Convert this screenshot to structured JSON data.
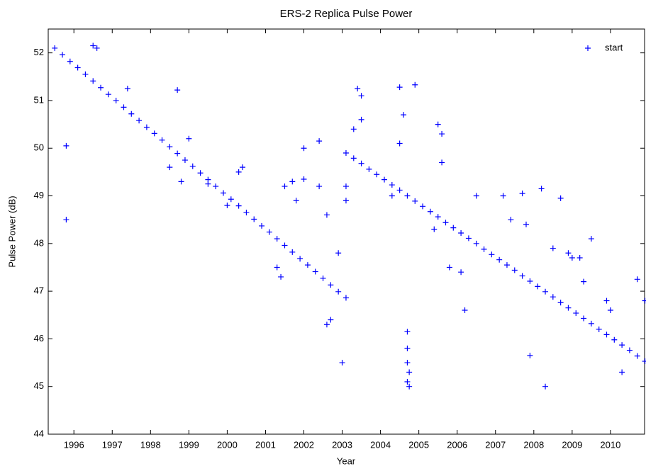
{
  "chart_data": {
    "type": "scatter",
    "title": "ERS-2 Replica Pulse Power",
    "x_label": "Year",
    "y_label": "Pulse Power (dB)",
    "xlim": [
      1995.33,
      2010.89
    ],
    "ylim": [
      44,
      52.5
    ],
    "xticks": [
      1996,
      1997,
      1998,
      1999,
      2000,
      2001,
      2002,
      2003,
      2004,
      2005,
      2006,
      2007,
      2008,
      2009,
      2010
    ],
    "yticks": [
      44,
      45,
      46,
      47,
      48,
      49,
      50,
      51,
      52
    ],
    "grid": false,
    "legend_position": "upper right",
    "series": [
      {
        "name": "start",
        "color": "#0000ff",
        "x": [
          1995.5,
          1995.7,
          1995.9,
          1996.1,
          1996.3,
          1996.5,
          1996.7,
          1996.9,
          1997.1,
          1997.3,
          1997.5,
          1997.7,
          1997.9,
          1998.1,
          1998.3,
          1998.5,
          1998.7,
          1998.9,
          1999.1,
          1999.3,
          1999.5,
          1999.7,
          1999.9,
          2000.1,
          2000.3,
          2000.5,
          2000.7,
          2000.9,
          2001.1,
          2001.3,
          2001.5,
          2001.7,
          2001.9,
          2002.1,
          2002.3,
          2002.5,
          2002.7,
          2002.9,
          2003.1,
          1995.8,
          1995.8,
          1996.5,
          1996.6,
          1997.4,
          1998.7,
          1998.8,
          1999.5,
          2000.4,
          2000.3,
          2001.5,
          2001.7,
          2001.3,
          2001.4,
          2001.8,
          2002.0,
          2002.0,
          2002.4,
          2002.4,
          2002.6,
          2002.7,
          2002.6,
          2003.0,
          2002.9,
          1998.5,
          1999.0,
          2000.0,
          2003.1,
          2003.3,
          2003.5,
          2003.7,
          2003.9,
          2004.1,
          2004.3,
          2004.5,
          2004.7,
          2004.9,
          2005.1,
          2005.3,
          2005.5,
          2005.7,
          2005.9,
          2006.1,
          2006.3,
          2006.5,
          2006.7,
          2006.9,
          2007.1,
          2007.3,
          2007.5,
          2007.7,
          2007.9,
          2008.1,
          2008.3,
          2008.5,
          2008.7,
          2008.9,
          2009.1,
          2009.3,
          2009.5,
          2009.7,
          2009.9,
          2010.1,
          2010.3,
          2010.5,
          2010.7,
          2010.9,
          2003.4,
          2003.5,
          2003.5,
          2003.3,
          2003.1,
          2003.1,
          2004.5,
          2004.6,
          2004.5,
          2004.3,
          2004.9,
          2005.5,
          2005.6,
          2005.6,
          2005.4,
          2004.7,
          2004.7,
          2004.7,
          2004.75,
          2004.7,
          2004.75,
          2005.8,
          2006.2,
          2006.1,
          2006.5,
          2007.2,
          2007.7,
          2007.4,
          2007.8,
          2008.2,
          2008.7,
          2007.9,
          2008.3,
          2009.5,
          2009.2,
          2009.3,
          2009.9,
          2010.7,
          2010.9,
          2010.3,
          2008.9,
          2008.5,
          2009.0,
          2010.0
        ],
        "y": [
          52.1,
          51.96,
          51.82,
          51.69,
          51.55,
          51.41,
          51.27,
          51.13,
          51.0,
          50.86,
          50.72,
          50.58,
          50.44,
          50.31,
          50.17,
          50.03,
          49.89,
          49.75,
          49.62,
          49.48,
          49.34,
          49.2,
          49.06,
          48.93,
          48.79,
          48.65,
          48.51,
          48.37,
          48.24,
          48.1,
          47.96,
          47.82,
          47.68,
          47.55,
          47.41,
          47.27,
          47.13,
          46.99,
          46.86,
          50.05,
          48.5,
          52.15,
          52.1,
          51.25,
          51.22,
          49.3,
          49.25,
          49.6,
          49.5,
          49.2,
          49.3,
          47.5,
          47.3,
          48.9,
          49.35,
          50.0,
          49.2,
          50.15,
          48.6,
          46.4,
          46.3,
          45.5,
          47.8,
          49.6,
          50.2,
          48.8,
          49.9,
          49.79,
          49.68,
          49.56,
          49.45,
          49.34,
          49.23,
          49.12,
          49.0,
          48.89,
          48.78,
          48.67,
          48.56,
          48.44,
          48.33,
          48.22,
          48.11,
          48.0,
          47.88,
          47.77,
          47.66,
          47.55,
          47.44,
          47.32,
          47.21,
          47.1,
          46.99,
          46.88,
          46.76,
          46.65,
          46.54,
          46.43,
          46.32,
          46.2,
          46.09,
          45.98,
          45.87,
          45.76,
          45.64,
          45.53,
          51.25,
          51.1,
          50.6,
          50.4,
          49.2,
          48.9,
          51.28,
          50.7,
          50.1,
          49.0,
          51.33,
          50.5,
          50.3,
          49.7,
          48.3,
          46.15,
          45.8,
          45.5,
          45.3,
          45.1,
          45.0,
          47.5,
          46.6,
          47.4,
          49.0,
          49.0,
          49.05,
          48.5,
          48.4,
          49.15,
          48.95,
          45.65,
          45.0,
          48.1,
          47.7,
          47.2,
          46.8,
          47.25,
          46.8,
          45.3,
          47.8,
          47.9,
          47.7,
          46.6
        ]
      }
    ]
  }
}
